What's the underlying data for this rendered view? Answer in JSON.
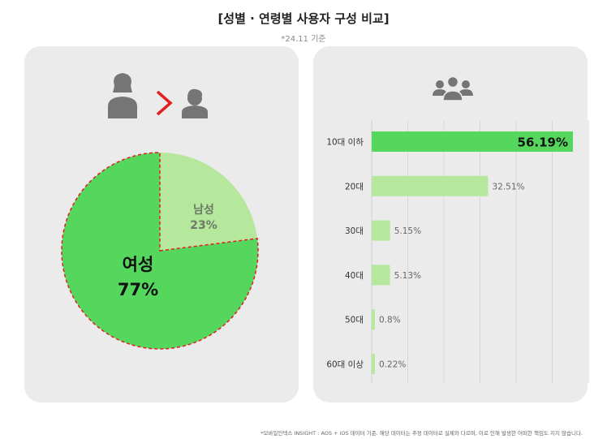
{
  "header": {
    "title": "[성별 · 연령별 사용자 구성 비교]",
    "subtitle": "*24.11 기준"
  },
  "icons": {
    "female": "woman-user-icon",
    "greater_than": "greater-than-icon",
    "male": "man-user-icon",
    "group": "user-group-icon"
  },
  "colors": {
    "card_bg": "#ebebeb",
    "strong_green": "#55d65d",
    "light_green": "#b5e89c",
    "highlight_red": "#e02020",
    "icon_gray": "#757575"
  },
  "chart_data": [
    {
      "type": "pie",
      "slices": [
        {
          "label": "여성",
          "value": 77,
          "value_label": "77%",
          "color": "#55d65d"
        },
        {
          "label": "남성",
          "value": 23,
          "value_label": "23%",
          "color": "#b5e89c"
        }
      ]
    },
    {
      "type": "bar",
      "orientation": "horizontal",
      "categories": [
        "10대 이하",
        "20대",
        "30대",
        "40대",
        "50대",
        "60대 이상"
      ],
      "values": [
        56.19,
        32.51,
        5.15,
        5.13,
        0.8,
        0.22
      ],
      "value_labels": [
        "56.19%",
        "32.51%",
        "5.15%",
        "5.13%",
        "0.8%",
        "0.22%"
      ],
      "grid": true
    }
  ],
  "footnote": "*모바일인덱스 INSIGHT : AOS + iOS 데이터 기준. 해당 데이터는 추정 데이터로 실제와 다르며, 이로 인해 발생한 어떠한 책임도 지지 않습니다."
}
